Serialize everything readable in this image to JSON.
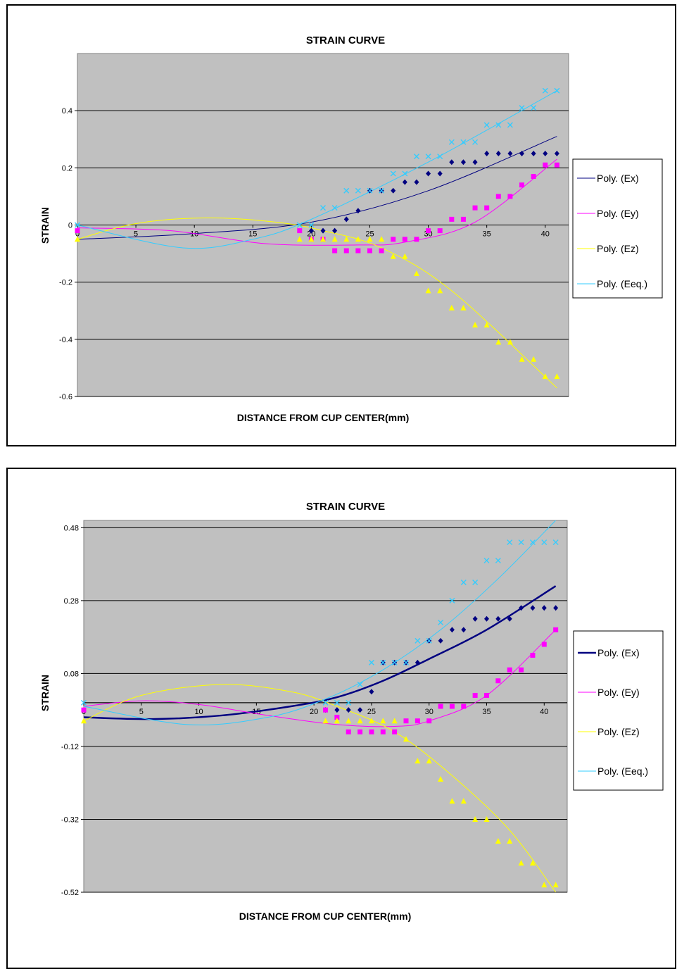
{
  "chart_data": [
    {
      "type": "scatter",
      "title": "STRAIN CURVE",
      "xlabel": "DISTANCE FROM CUP CENTER(mm)",
      "ylabel": "STRAIN",
      "xlim": [
        0,
        42
      ],
      "ylim": [
        -0.6,
        0.6
      ],
      "yticks": [
        -0.6,
        -0.4,
        -0.2,
        0,
        0.2,
        0.4
      ],
      "ytick_labels": [
        "-0.6",
        "-0.4",
        "-0.2",
        "0",
        "0.2",
        "0.4"
      ],
      "xticks": [
        0,
        5,
        10,
        15,
        20,
        25,
        30,
        35,
        40
      ],
      "xtick_labels": [
        "0",
        "5",
        "10",
        "15",
        "20",
        "25",
        "30",
        "35",
        "40"
      ],
      "background_color": "#c0c0c0",
      "grid": true,
      "legend_position": "right",
      "series": [
        {
          "name": "Ex",
          "marker": "diamond",
          "color": "#000080",
          "x": [
            20,
            21,
            22,
            23,
            24,
            25,
            26,
            27,
            28,
            29,
            30,
            31,
            32,
            33,
            34,
            35,
            36,
            37,
            38,
            39,
            40,
            41
          ],
          "y": [
            -0.02,
            -0.02,
            -0.02,
            0.02,
            0.05,
            0.12,
            0.12,
            0.12,
            0.15,
            0.15,
            0.18,
            0.18,
            0.22,
            0.22,
            0.22,
            0.25,
            0.25,
            0.25,
            0.25,
            0.25,
            0.25,
            0.25
          ]
        },
        {
          "name": "Ey",
          "marker": "square",
          "color": "#ff00ff",
          "x": [
            0,
            19,
            20,
            21,
            22,
            23,
            24,
            25,
            26,
            27,
            28,
            29,
            30,
            31,
            32,
            33,
            34,
            35,
            36,
            37,
            38,
            39,
            40,
            41
          ],
          "y": [
            -0.02,
            -0.02,
            -0.05,
            -0.05,
            -0.09,
            -0.09,
            -0.09,
            -0.09,
            -0.09,
            -0.05,
            -0.05,
            -0.05,
            -0.02,
            -0.02,
            0.02,
            0.02,
            0.06,
            0.06,
            0.1,
            0.1,
            0.14,
            0.17,
            0.21,
            0.21
          ]
        },
        {
          "name": "Ez",
          "marker": "triangle",
          "color": "#ffff00",
          "x": [
            0,
            19,
            20,
            21,
            22,
            23,
            24,
            25,
            26,
            27,
            28,
            29,
            30,
            31,
            32,
            33,
            34,
            35,
            36,
            37,
            38,
            39,
            40,
            41
          ],
          "y": [
            -0.05,
            -0.05,
            -0.05,
            -0.05,
            -0.05,
            -0.05,
            -0.05,
            -0.05,
            -0.05,
            -0.11,
            -0.11,
            -0.17,
            -0.23,
            -0.23,
            -0.29,
            -0.29,
            -0.35,
            -0.35,
            -0.41,
            -0.41,
            -0.47,
            -0.47,
            -0.53,
            -0.53
          ]
        },
        {
          "name": "Eeq.",
          "marker": "x",
          "color": "#33ccff",
          "x": [
            0,
            19,
            20,
            21,
            22,
            23,
            24,
            25,
            26,
            27,
            28,
            29,
            30,
            31,
            32,
            33,
            34,
            35,
            36,
            37,
            38,
            39,
            40,
            41
          ],
          "y": [
            0,
            0,
            0,
            0.06,
            0.06,
            0.12,
            0.12,
            0.12,
            0.12,
            0.18,
            0.18,
            0.24,
            0.24,
            0.24,
            0.29,
            0.29,
            0.29,
            0.35,
            0.35,
            0.35,
            0.41,
            0.41,
            0.47,
            0.47
          ]
        }
      ],
      "trendlines": [
        {
          "name": "Poly. (Ex)",
          "color": "#000080",
          "width": 1,
          "x": [
            0,
            10,
            20,
            30,
            41
          ],
          "y": [
            -0.05,
            -0.03,
            0.01,
            0.12,
            0.31
          ]
        },
        {
          "name": "Poly. (Ey)",
          "color": "#ff00ff",
          "width": 1,
          "x": [
            0,
            8,
            16,
            24,
            28,
            34,
            41
          ],
          "y": [
            -0.01,
            -0.02,
            -0.065,
            -0.07,
            -0.06,
            0.01,
            0.23
          ]
        },
        {
          "name": "Poly. (Ez)",
          "color": "#ffff00",
          "width": 1,
          "x": [
            0,
            5,
            11,
            17,
            21,
            26,
            32,
            41
          ],
          "y": [
            -0.05,
            0.005,
            0.025,
            0.01,
            -0.02,
            -0.08,
            -0.23,
            -0.57
          ]
        },
        {
          "name": "Poly. (Eeq.)",
          "color": "#33ccff",
          "width": 1,
          "x": [
            0,
            9,
            15,
            20,
            30,
            41
          ],
          "y": [
            0,
            -0.08,
            -0.05,
            0.02,
            0.22,
            0.47
          ]
        }
      ]
    },
    {
      "type": "scatter",
      "title": "STRAIN CURVE",
      "xlabel": "DISTANCE FROM CUP CENTER(mm)",
      "ylabel": "STRAIN",
      "xlim": [
        0,
        42
      ],
      "ylim": [
        -0.52,
        0.5
      ],
      "yticks": [
        -0.52,
        -0.32,
        -0.12,
        0.08,
        0.28,
        0.48
      ],
      "ytick_labels": [
        "-0.52",
        "-0.32",
        "-0.12",
        "0.08",
        "0.28",
        "0.48"
      ],
      "xticks": [
        0,
        5,
        10,
        15,
        20,
        25,
        30,
        35,
        40
      ],
      "xtick_labels": [
        "0",
        "5",
        "10",
        "15",
        "20",
        "25",
        "30",
        "35",
        "40"
      ],
      "extra_gridline": 0,
      "background_color": "#c0c0c0",
      "grid": true,
      "legend_position": "right",
      "series": [
        {
          "name": "Ex",
          "marker": "diamond",
          "color": "#000080",
          "x": [
            21,
            22,
            23,
            24,
            25,
            26,
            27,
            28,
            29,
            30,
            31,
            32,
            33,
            34,
            35,
            36,
            37,
            38,
            39,
            40,
            41
          ],
          "y": [
            -0.02,
            -0.02,
            -0.02,
            -0.02,
            0.03,
            0.11,
            0.11,
            0.11,
            0.11,
            0.17,
            0.17,
            0.2,
            0.2,
            0.23,
            0.23,
            0.23,
            0.23,
            0.26,
            0.26,
            0.26,
            0.26
          ]
        },
        {
          "name": "Ey",
          "marker": "square",
          "color": "#ff00ff",
          "x": [
            0,
            21,
            22,
            23,
            24,
            25,
            26,
            27,
            28,
            29,
            30,
            31,
            32,
            33,
            34,
            35,
            36,
            37,
            38,
            39,
            40,
            41
          ],
          "y": [
            -0.02,
            -0.02,
            -0.04,
            -0.08,
            -0.08,
            -0.08,
            -0.08,
            -0.08,
            -0.05,
            -0.05,
            -0.05,
            -0.01,
            -0.01,
            -0.01,
            0.02,
            0.02,
            0.06,
            0.09,
            0.09,
            0.13,
            0.16,
            0.2
          ]
        },
        {
          "name": "Ez",
          "marker": "triangle",
          "color": "#ffff00",
          "x": [
            0,
            21,
            22,
            23,
            24,
            25,
            26,
            27,
            28,
            29,
            30,
            31,
            32,
            33,
            34,
            35,
            36,
            37,
            38,
            39,
            40,
            41
          ],
          "y": [
            -0.05,
            -0.05,
            -0.05,
            -0.05,
            -0.05,
            -0.05,
            -0.05,
            -0.05,
            -0.1,
            -0.16,
            -0.16,
            -0.21,
            -0.27,
            -0.27,
            -0.32,
            -0.32,
            -0.38,
            -0.38,
            -0.44,
            -0.44,
            -0.5,
            -0.5
          ]
        },
        {
          "name": "Eeq.",
          "marker": "x",
          "color": "#33ccff",
          "x": [
            0,
            21,
            22,
            23,
            24,
            25,
            26,
            27,
            28,
            29,
            30,
            31,
            32,
            33,
            34,
            35,
            36,
            37,
            38,
            39,
            40,
            41
          ],
          "y": [
            0,
            0,
            0,
            0,
            0.05,
            0.11,
            0.11,
            0.11,
            0.11,
            0.17,
            0.17,
            0.22,
            0.28,
            0.33,
            0.33,
            0.39,
            0.39,
            0.44,
            0.44,
            0.44,
            0.44,
            0.44
          ]
        }
      ],
      "trendlines": [
        {
          "name": "Poly. (Ex)",
          "color": "#000080",
          "width": 2.5,
          "x": [
            0,
            6,
            12,
            18,
            22,
            26,
            30,
            35,
            41
          ],
          "y": [
            -0.04,
            -0.045,
            -0.035,
            -0.01,
            0.015,
            0.06,
            0.12,
            0.2,
            0.32
          ]
        },
        {
          "name": "Poly. (Ey)",
          "color": "#ff00ff",
          "width": 1,
          "x": [
            0,
            5,
            10,
            16,
            22,
            27,
            30,
            35,
            41
          ],
          "y": [
            -0.01,
            0.005,
            -0.005,
            -0.035,
            -0.06,
            -0.065,
            -0.05,
            0.02,
            0.2
          ]
        },
        {
          "name": "Poly. (Ez)",
          "color": "#ffff00",
          "width": 1,
          "x": [
            0,
            5,
            12,
            18,
            22,
            27,
            32,
            37,
            41
          ],
          "y": [
            -0.05,
            0.02,
            0.05,
            0.03,
            -0.01,
            -0.08,
            -0.2,
            -0.35,
            -0.52
          ]
        },
        {
          "name": "Poly. (Eeq.)",
          "color": "#33ccff",
          "width": 1,
          "x": [
            0,
            9,
            16,
            21,
            26,
            31,
            36,
            41
          ],
          "y": [
            -0.01,
            -0.06,
            -0.04,
            0.01,
            0.09,
            0.2,
            0.34,
            0.5
          ]
        }
      ]
    }
  ]
}
